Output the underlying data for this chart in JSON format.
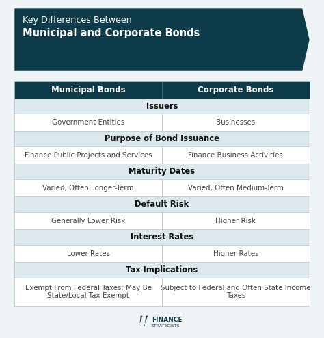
{
  "title_line1": "Key Differences Between",
  "title_line2": "Municipal and Corporate Bonds",
  "header_col1": "Municipal Bonds",
  "header_col2": "Corporate Bonds",
  "categories": [
    {
      "label": "Issuers",
      "col1": "Government Entities",
      "col2": "Businesses",
      "tall": false
    },
    {
      "label": "Purpose of Bond Issuance",
      "col1": "Finance Public Projects and Services",
      "col2": "Finance Business Activities",
      "tall": false
    },
    {
      "label": "Maturity Dates",
      "col1": "Varied, Often Longer-Term",
      "col2": "Varied, Often Medium-Term",
      "tall": false
    },
    {
      "label": "Default Risk",
      "col1": "Generally Lower Risk",
      "col2": "Higher Risk",
      "tall": false
    },
    {
      "label": "Interest Rates",
      "col1": "Lower Rates",
      "col2": "Higher Rates",
      "tall": false
    },
    {
      "label": "Tax Implications",
      "col1": "Exempt From Federal Taxes; May Be\nState/Local Tax Exempt",
      "col2": "Subject to Federal and Often State Income\nTaxes",
      "tall": true
    }
  ],
  "bg_color": "#eef3f5",
  "header_bg": "#0d3b4a",
  "header_text_color": "#ffffff",
  "category_bg": "#dce8ec",
  "row_bg": "#ffffff",
  "title_bg": "#0d3b4a",
  "body_text_color": "#444444",
  "category_text_color": "#111111",
  "border_color": "#b8cdd2",
  "logo_text_color": "#0d3b4a"
}
